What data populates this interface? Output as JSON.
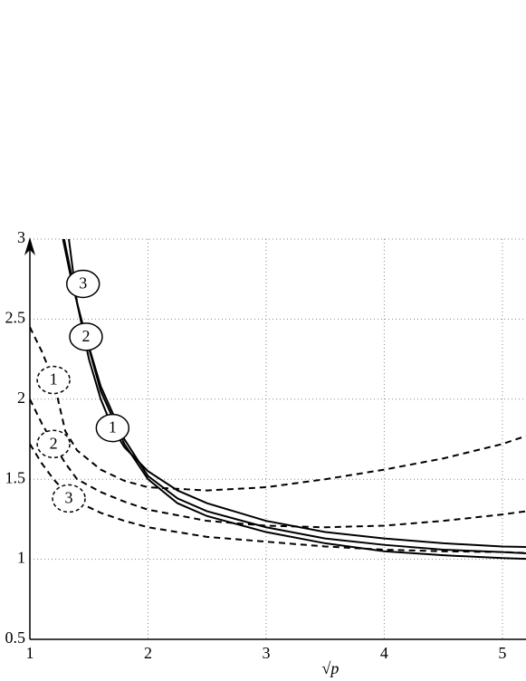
{
  "chart_data": {
    "type": "line",
    "x_label": "√p",
    "xlim": [
      1,
      5.2
    ],
    "ylim": [
      0.5,
      3
    ],
    "xticks": [
      1,
      2,
      3,
      4,
      5
    ],
    "yticks": [
      0.5,
      1,
      1.5,
      2,
      2.5,
      3
    ],
    "grid": true,
    "color": "#000000",
    "series": [
      {
        "label": "1",
        "style": "solid",
        "label_at": [
          1.7,
          1.82
        ],
        "x": [
          1.33,
          1.4,
          1.5,
          1.6,
          1.7,
          1.8,
          2,
          2.25,
          2.5,
          3,
          3.5,
          4,
          4.5,
          5,
          5.2
        ],
        "values": [
          3,
          2.6,
          2.25,
          2.0,
          1.82,
          1.7,
          1.55,
          1.43,
          1.35,
          1.24,
          1.17,
          1.13,
          1.1,
          1.08,
          1.077
        ]
      },
      {
        "label": "2",
        "style": "solid",
        "label_at": [
          1.475,
          2.39
        ],
        "x": [
          1.29,
          1.4,
          1.475,
          1.6,
          1.8,
          2,
          2.25,
          2.5,
          3,
          3.5,
          4,
          4.5,
          5,
          5.2
        ],
        "values": [
          3,
          2.6,
          2.39,
          2.08,
          1.75,
          1.52,
          1.38,
          1.3,
          1.2,
          1.13,
          1.09,
          1.06,
          1.045,
          1.037
        ]
      },
      {
        "label": "3",
        "style": "solid",
        "label_at": [
          1.45,
          2.72
        ],
        "x": [
          1.28,
          1.35,
          1.45,
          1.6,
          1.8,
          2,
          2.25,
          2.5,
          3,
          3.5,
          4,
          4.5,
          5,
          5.2
        ],
        "values": [
          3,
          2.75,
          2.45,
          2.05,
          1.72,
          1.5,
          1.35,
          1.27,
          1.17,
          1.1,
          1.05,
          1.025,
          1.008,
          1.003
        ]
      },
      {
        "label": "1",
        "style": "dashed",
        "label_at": [
          1.2,
          2.12
        ],
        "x": [
          1,
          1.1,
          1.2,
          1.3,
          1.4,
          1.6,
          1.8,
          2,
          2.5,
          3,
          3.5,
          4,
          4.5,
          5,
          5.2
        ],
        "values": [
          2.45,
          2.3,
          2.12,
          1.8,
          1.68,
          1.56,
          1.49,
          1.45,
          1.43,
          1.45,
          1.5,
          1.56,
          1.63,
          1.72,
          1.77
        ]
      },
      {
        "label": "2",
        "style": "dashed",
        "label_at": [
          1.2,
          1.72
        ],
        "x": [
          1,
          1.1,
          1.2,
          1.3,
          1.4,
          1.6,
          1.8,
          2,
          2.5,
          3,
          3.5,
          4,
          4.5,
          5,
          5.2
        ],
        "values": [
          2.0,
          1.85,
          1.72,
          1.6,
          1.5,
          1.42,
          1.36,
          1.31,
          1.24,
          1.21,
          1.2,
          1.21,
          1.24,
          1.28,
          1.3
        ]
      },
      {
        "label": "3",
        "style": "dashed",
        "label_at": [
          1.33,
          1.38
        ],
        "x": [
          1,
          1.1,
          1.2,
          1.3,
          1.4,
          1.6,
          1.8,
          2,
          2.5,
          3,
          3.5,
          4,
          4.5,
          5,
          5.2
        ],
        "values": [
          1.72,
          1.6,
          1.5,
          1.42,
          1.36,
          1.29,
          1.24,
          1.2,
          1.14,
          1.11,
          1.08,
          1.06,
          1.05,
          1.045,
          1.04
        ]
      }
    ]
  }
}
